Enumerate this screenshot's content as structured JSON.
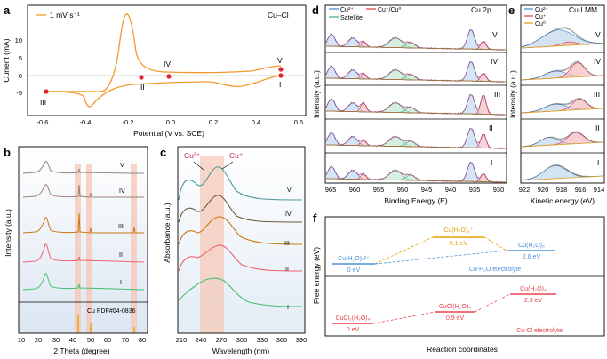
{
  "figure": {
    "panel_labels": [
      "a",
      "b",
      "c",
      "d",
      "e",
      "f"
    ],
    "roman": [
      "V",
      "IV",
      "III",
      "II",
      "I"
    ],
    "colors": {
      "orange": "#F39A2B",
      "red_marker": "#E0242A",
      "band": "#F6C6B4",
      "cu2_blue": "#4A90D9",
      "cu1_red": "#E8434B",
      "cu0_orange": "#E0A11B",
      "satellite_green": "#48B878",
      "envelope": "#B03A8C",
      "bg_line": "#9B7E3A"
    }
  },
  "panel_a": {
    "legend": "1 mV s⁻¹",
    "sample": "Cu–Cl",
    "xlabel": "Potential (V vs. SCE)",
    "ylabel": "Current (mA)",
    "x_ticks": [
      "-0.6",
      "-0.4",
      "-0.2",
      "0.0",
      "0.2",
      "0.4",
      "0.6"
    ],
    "y_ticks": [
      "-5",
      "0",
      "5",
      "10"
    ],
    "markers": [
      "V",
      "IV",
      "I",
      "II",
      "III"
    ]
  },
  "panel_b": {
    "xlabel": "2 Theta (degree)",
    "ylabel": "Intensity (a.u.)",
    "x_ticks": [
      "10",
      "20",
      "30",
      "40",
      "50",
      "60",
      "70",
      "80"
    ],
    "reference": "Cu PDF#04-0836",
    "series": [
      {
        "name": "V",
        "color": "#8A8A8A"
      },
      {
        "name": "IV",
        "color": "#A08078"
      },
      {
        "name": "III",
        "color": "#C87814"
      },
      {
        "name": "II",
        "color": "#F06070"
      },
      {
        "name": "I",
        "color": "#44C070"
      }
    ]
  },
  "panel_c": {
    "xlabel": "Wavelength (nm)",
    "ylabel": "Absorbance (a.u.)",
    "x_ticks": [
      "210",
      "240",
      "270",
      "300",
      "330",
      "360",
      "390"
    ],
    "annot_cu2": "Cu²⁺",
    "annot_cu1": "Cu⁺",
    "series": [
      {
        "name": "V",
        "color": "#4E9A9A"
      },
      {
        "name": "IV",
        "color": "#6A5A3A"
      },
      {
        "name": "III",
        "color": "#C87814"
      },
      {
        "name": "II",
        "color": "#F06070"
      },
      {
        "name": "I",
        "color": "#44C070"
      }
    ]
  },
  "panel_d": {
    "title": "Cu 2p",
    "xlabel": "Binding Energy (E)",
    "ylabel": "Intensity (a.u.)",
    "x_ticks": [
      "965",
      "960",
      "955",
      "950",
      "945",
      "940",
      "935",
      "930"
    ],
    "legend": [
      "Cu²⁺",
      "Cu⁺/Cu⁰",
      "Satellite"
    ]
  },
  "panel_e": {
    "title": "Cu LMM",
    "xlabel": "Kinetic energy (eV)",
    "ylabel": "Intensity (a.u.)",
    "x_ticks": [
      "922",
      "920",
      "918",
      "916",
      "914"
    ],
    "legend": [
      "Cu²⁺",
      "Cu⁺",
      "Cu⁰"
    ]
  },
  "panel_f": {
    "ylabel": "Free energy (eV)",
    "xlabel": "Reaction coordinates",
    "top": {
      "label": "Cu-H₂O electrolyte",
      "levels": [
        {
          "species": "Cu(H₂O)₆²⁺",
          "energy": "0 eV"
        },
        {
          "species": "Cu(H₂O)₆⁺",
          "energy": "5.1 eV"
        },
        {
          "species": "Cu(H₂O)₆",
          "energy": "2.6 eV"
        }
      ]
    },
    "bottom": {
      "label": "Cu-Cl electrolyte",
      "levels": [
        {
          "species": "CuCl₂(H₂O)₄",
          "energy": "0 eV"
        },
        {
          "species": "CuCl(H₂O)₄",
          "energy": "0.9 eV"
        },
        {
          "species": "Cu(H₂O)₄",
          "energy": "2.3 eV"
        }
      ]
    }
  }
}
